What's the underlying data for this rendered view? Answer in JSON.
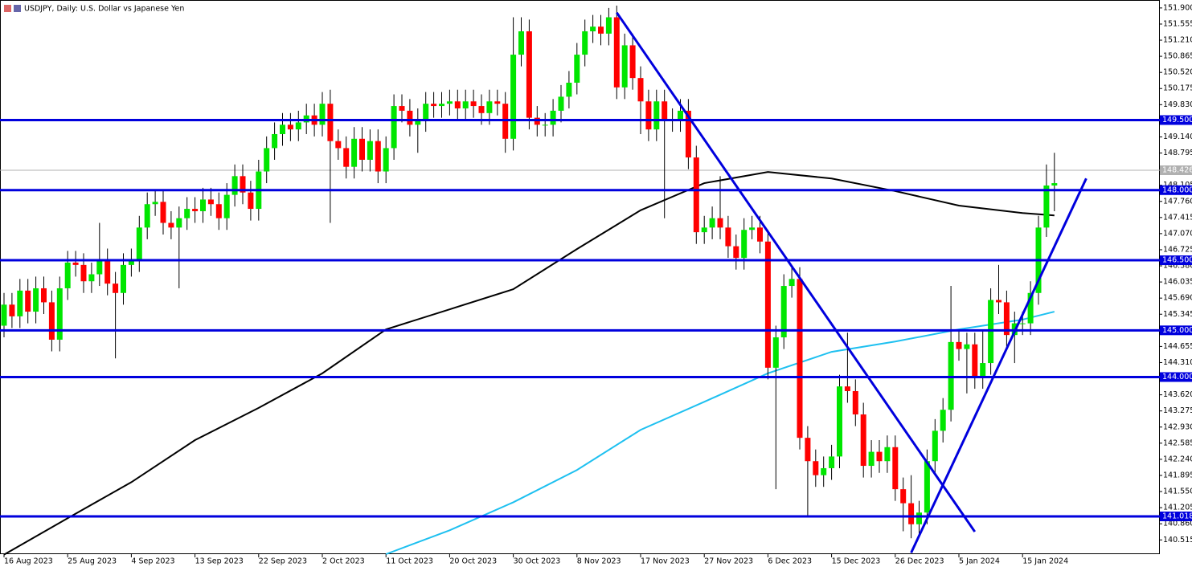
{
  "chart_data": {
    "type": "candlestick",
    "title": "USDJPY, Daily:  U.S. Dollar vs Japanese Yen",
    "up_color": "#00e600",
    "down_color": "#ff0000",
    "wick_color": "#000000",
    "categories": [
      "16 Aug 2023",
      null,
      null,
      null,
      null,
      null,
      null,
      null,
      "25 Aug 2023",
      null,
      null,
      null,
      null,
      null,
      null,
      null,
      "4 Sep 2023",
      null,
      null,
      null,
      null,
      null,
      null,
      null,
      "13 Sep 2023",
      null,
      null,
      null,
      null,
      null,
      null,
      null,
      "22 Sep 2023",
      null,
      null,
      null,
      null,
      null,
      null,
      null,
      "2 Oct 2023",
      null,
      null,
      null,
      null,
      null,
      null,
      null,
      "11 Oct 2023",
      null,
      null,
      null,
      null,
      null,
      null,
      null,
      "20 Oct 2023",
      null,
      null,
      null,
      null,
      null,
      null,
      null,
      "30 Oct 2023",
      null,
      null,
      null,
      null,
      null,
      null,
      null,
      "8 Nov 2023",
      null,
      null,
      null,
      null,
      null,
      null,
      null,
      "17 Nov 2023",
      null,
      null,
      null,
      null,
      null,
      null,
      null,
      "27 Nov 2023",
      null,
      null,
      null,
      null,
      null,
      null,
      null,
      "6 Dec 2023",
      null,
      null,
      null,
      null,
      null,
      null,
      null,
      "15 Dec 2023",
      null,
      null,
      null,
      null,
      null,
      null,
      null,
      "26 Dec 2023",
      null,
      null,
      null,
      null,
      null,
      null,
      null,
      "5 Jan 2024",
      null,
      null,
      null,
      null,
      null,
      null,
      null,
      "15 Jan 2024",
      null,
      null,
      null,
      null
    ],
    "open": [
      145.1,
      145.55,
      145.3,
      145.85,
      145.4,
      145.9,
      145.6,
      144.8,
      145.9,
      146.45,
      146.4,
      146.05,
      146.2,
      146.5,
      146.0,
      145.8,
      146.4,
      146.5,
      147.2,
      147.7,
      147.75,
      147.3,
      147.2,
      147.4,
      147.6,
      147.55,
      147.8,
      147.7,
      147.4,
      147.9,
      148.3,
      147.95,
      147.6,
      148.4,
      148.9,
      149.2,
      149.4,
      149.3,
      149.45,
      149.6,
      149.4,
      149.85,
      149.05,
      148.9,
      148.5,
      149.1,
      148.65,
      149.05,
      148.4,
      148.9,
      149.8,
      149.7,
      149.4,
      149.5,
      149.85,
      149.8,
      149.85,
      149.9,
      149.75,
      149.9,
      149.8,
      149.65,
      149.9,
      149.85,
      149.1,
      150.9,
      151.4,
      149.55,
      149.4,
      149.4,
      149.7,
      150.0,
      150.3,
      150.9,
      151.4,
      151.5,
      151.35,
      151.7,
      150.2,
      151.1,
      150.4,
      149.9,
      149.3,
      149.9,
      149.5,
      149.5,
      149.7,
      148.7,
      147.1,
      147.2,
      147.4,
      147.2,
      146.8,
      146.55,
      147.15,
      147.2,
      146.9,
      144.2,
      144.85,
      145.95,
      146.1,
      142.7,
      142.2,
      141.9,
      142.05,
      142.3,
      143.8,
      143.7,
      143.2,
      142.1,
      142.4,
      142.2,
      142.5,
      141.6,
      141.3,
      140.85,
      141.1,
      142.2,
      142.85,
      143.3,
      144.75,
      144.6,
      144.7,
      144.0,
      144.3,
      145.65,
      145.6,
      144.9,
      145.15,
      145.15,
      145.8,
      147.2,
      148.1
    ],
    "high": [
      145.8,
      145.8,
      146.1,
      146.1,
      146.15,
      146.15,
      145.85,
      146.15,
      146.7,
      146.7,
      146.65,
      146.45,
      147.3,
      146.75,
      146.25,
      146.65,
      146.75,
      147.45,
      147.95,
      148.0,
      148.0,
      147.55,
      147.65,
      147.85,
      147.85,
      148.05,
      148.05,
      147.95,
      148.15,
      148.55,
      148.55,
      148.2,
      148.65,
      149.15,
      149.45,
      149.65,
      149.65,
      149.7,
      149.85,
      149.85,
      150.1,
      150.15,
      149.3,
      149.15,
      149.35,
      149.35,
      149.3,
      149.3,
      149.15,
      150.05,
      150.05,
      149.95,
      149.75,
      150.1,
      150.1,
      150.1,
      150.15,
      150.15,
      150.15,
      150.15,
      150.05,
      150.15,
      150.15,
      150.1,
      151.7,
      151.7,
      151.65,
      149.8,
      149.65,
      149.95,
      150.25,
      150.55,
      151.15,
      151.65,
      151.75,
      151.75,
      151.9,
      151.95,
      151.35,
      151.35,
      150.65,
      150.15,
      150.15,
      150.15,
      149.75,
      149.95,
      149.95,
      148.95,
      147.45,
      147.65,
      148.3,
      147.45,
      147.05,
      147.4,
      147.45,
      147.45,
      147.15,
      145.1,
      146.2,
      146.35,
      146.35,
      142.95,
      142.45,
      142.3,
      142.55,
      144.05,
      144.95,
      143.95,
      143.45,
      142.65,
      142.65,
      142.75,
      142.75,
      141.85,
      141.9,
      141.35,
      142.45,
      143.1,
      143.55,
      145.95,
      145.0,
      144.95,
      144.95,
      145.0,
      145.9,
      146.4,
      145.85,
      145.4,
      145.4,
      146.05,
      147.45,
      148.55,
      148.8
    ],
    "low": [
      144.85,
      145.05,
      145.05,
      145.15,
      145.15,
      145.35,
      144.55,
      144.55,
      145.65,
      146.15,
      145.8,
      145.8,
      145.95,
      145.75,
      144.4,
      145.55,
      146.15,
      146.25,
      146.95,
      147.45,
      147.05,
      146.95,
      145.9,
      147.15,
      147.3,
      147.3,
      147.45,
      147.15,
      147.15,
      147.65,
      147.7,
      147.35,
      147.35,
      148.15,
      148.65,
      148.95,
      149.05,
      149.05,
      149.2,
      149.15,
      149.15,
      147.3,
      148.65,
      148.25,
      148.25,
      148.4,
      148.4,
      148.15,
      148.15,
      148.65,
      149.45,
      149.15,
      148.8,
      149.25,
      149.55,
      149.55,
      149.6,
      149.5,
      149.5,
      149.55,
      149.4,
      149.4,
      149.6,
      148.8,
      148.85,
      150.65,
      149.3,
      149.15,
      149.15,
      149.15,
      149.45,
      149.75,
      150.05,
      150.65,
      151.15,
      151.1,
      151.1,
      149.95,
      149.95,
      150.15,
      149.2,
      149.05,
      149.05,
      147.4,
      149.25,
      149.25,
      148.45,
      146.85,
      146.85,
      146.95,
      146.95,
      146.55,
      146.3,
      146.3,
      146.95,
      146.65,
      143.95,
      141.6,
      144.6,
      145.7,
      142.45,
      141.0,
      141.65,
      141.65,
      141.8,
      142.05,
      143.45,
      142.95,
      141.85,
      141.85,
      141.95,
      141.95,
      141.35,
      140.7,
      140.55,
      140.6,
      140.85,
      141.95,
      142.6,
      143.05,
      144.35,
      143.65,
      143.75,
      143.75,
      144.05,
      145.35,
      144.65,
      144.3,
      144.9,
      144.9,
      145.55,
      147.0,
      147.55
    ],
    "close": [
      145.55,
      145.3,
      145.85,
      145.4,
      145.9,
      145.6,
      144.8,
      145.9,
      146.45,
      146.4,
      146.05,
      146.2,
      146.5,
      146.0,
      145.8,
      146.4,
      146.5,
      147.2,
      147.7,
      147.75,
      147.3,
      147.2,
      147.4,
      147.6,
      147.55,
      147.8,
      147.7,
      147.4,
      147.9,
      148.3,
      147.95,
      147.6,
      148.4,
      148.9,
      149.2,
      149.4,
      149.3,
      149.45,
      149.6,
      149.4,
      149.85,
      149.05,
      148.9,
      148.5,
      149.1,
      148.65,
      149.05,
      148.4,
      148.9,
      149.8,
      149.7,
      149.4,
      149.5,
      149.85,
      149.8,
      149.85,
      149.9,
      149.75,
      149.9,
      149.8,
      149.65,
      149.9,
      149.85,
      149.1,
      150.9,
      151.4,
      149.55,
      149.4,
      149.4,
      149.7,
      150.0,
      150.3,
      150.9,
      151.4,
      151.5,
      151.35,
      151.7,
      150.2,
      151.1,
      150.4,
      149.9,
      149.3,
      149.9,
      149.5,
      149.5,
      149.7,
      148.7,
      147.1,
      147.2,
      147.4,
      147.2,
      146.8,
      146.55,
      147.15,
      147.2,
      146.9,
      144.2,
      144.85,
      145.95,
      146.1,
      142.7,
      142.2,
      141.9,
      142.05,
      142.3,
      143.8,
      143.7,
      143.2,
      142.1,
      142.4,
      142.2,
      142.5,
      141.6,
      141.3,
      140.85,
      141.1,
      142.2,
      142.85,
      143.3,
      144.75,
      144.6,
      144.7,
      144.0,
      144.3,
      145.65,
      145.6,
      144.9,
      145.15,
      145.15,
      145.8,
      147.2,
      148.1,
      148.15
    ],
    "ylim": [
      140.21,
      152.07
    ],
    "yticks": [
      {
        "value": 151.9,
        "label": "151.900"
      },
      {
        "value": 151.555,
        "label": "151.555"
      },
      {
        "value": 151.21,
        "label": "151.210"
      },
      {
        "value": 150.865,
        "label": "150.865"
      },
      {
        "value": 150.52,
        "label": "150.520"
      },
      {
        "value": 150.175,
        "label": "150.175"
      },
      {
        "value": 149.83,
        "label": "149.830"
      },
      {
        "value": 149.14,
        "label": "149.140"
      },
      {
        "value": 148.795,
        "label": "148.795"
      },
      {
        "value": 148.105,
        "label": "148.105"
      },
      {
        "value": 147.76,
        "label": "147.760"
      },
      {
        "value": 147.415,
        "label": "147.415"
      },
      {
        "value": 147.07,
        "label": "147.070"
      },
      {
        "value": 146.725,
        "label": "146.725"
      },
      {
        "value": 146.38,
        "label": "146.380"
      },
      {
        "value": 146.035,
        "label": "146.035"
      },
      {
        "value": 145.69,
        "label": "145.690"
      },
      {
        "value": 145.345,
        "label": "145.345"
      },
      {
        "value": 144.655,
        "label": "144.655"
      },
      {
        "value": 144.31,
        "label": "144.310"
      },
      {
        "value": 143.62,
        "label": "143.620"
      },
      {
        "value": 143.275,
        "label": "143.275"
      },
      {
        "value": 142.93,
        "label": "142.930"
      },
      {
        "value": 142.585,
        "label": "142.585"
      },
      {
        "value": 142.24,
        "label": "142.240"
      },
      {
        "value": 141.895,
        "label": "141.895"
      },
      {
        "value": 141.55,
        "label": "141.550"
      },
      {
        "value": 141.205,
        "label": "141.205"
      },
      {
        "value": 140.86,
        "label": "140.860"
      },
      {
        "value": 140.515,
        "label": "140.515"
      }
    ],
    "levels": [
      {
        "value": 149.5,
        "label": "149.500"
      },
      {
        "value": 148.0,
        "label": "148.000"
      },
      {
        "value": 146.5,
        "label": "146.500"
      },
      {
        "value": 145.0,
        "label": "145.000"
      },
      {
        "value": 144.0,
        "label": "144.000"
      },
      {
        "value": 141.018,
        "label": "141.018"
      }
    ],
    "level_color": "#0000dd",
    "current_price": {
      "value": 148.426,
      "label": "148.426"
    },
    "moving_averages": [
      {
        "color": "#000000",
        "x": [
          0,
          8,
          16,
          24,
          32,
          40,
          48,
          56,
          64,
          72,
          80,
          88,
          96,
          104,
          112,
          120,
          128,
          132
        ],
        "values": [
          140.2,
          140.98,
          141.75,
          142.65,
          143.34,
          144.08,
          145.02,
          145.45,
          145.88,
          146.74,
          147.57,
          148.15,
          148.39,
          148.25,
          147.98,
          147.67,
          147.51,
          147.46
        ]
      },
      {
        "color": "#1ec0f0",
        "x": [
          48,
          56,
          64,
          72,
          80,
          88,
          96,
          104,
          112,
          120,
          128,
          132
        ],
        "values": [
          140.21,
          140.72,
          141.32,
          142.01,
          142.87,
          143.47,
          144.08,
          144.54,
          144.76,
          145.02,
          145.23,
          145.4
        ]
      }
    ],
    "trendlines": [
      {
        "x": [
          77,
          122
        ],
        "y": [
          151.8,
          140.69
        ]
      },
      {
        "x": [
          114,
          136
        ],
        "y": [
          140.24,
          148.25
        ]
      }
    ]
  }
}
